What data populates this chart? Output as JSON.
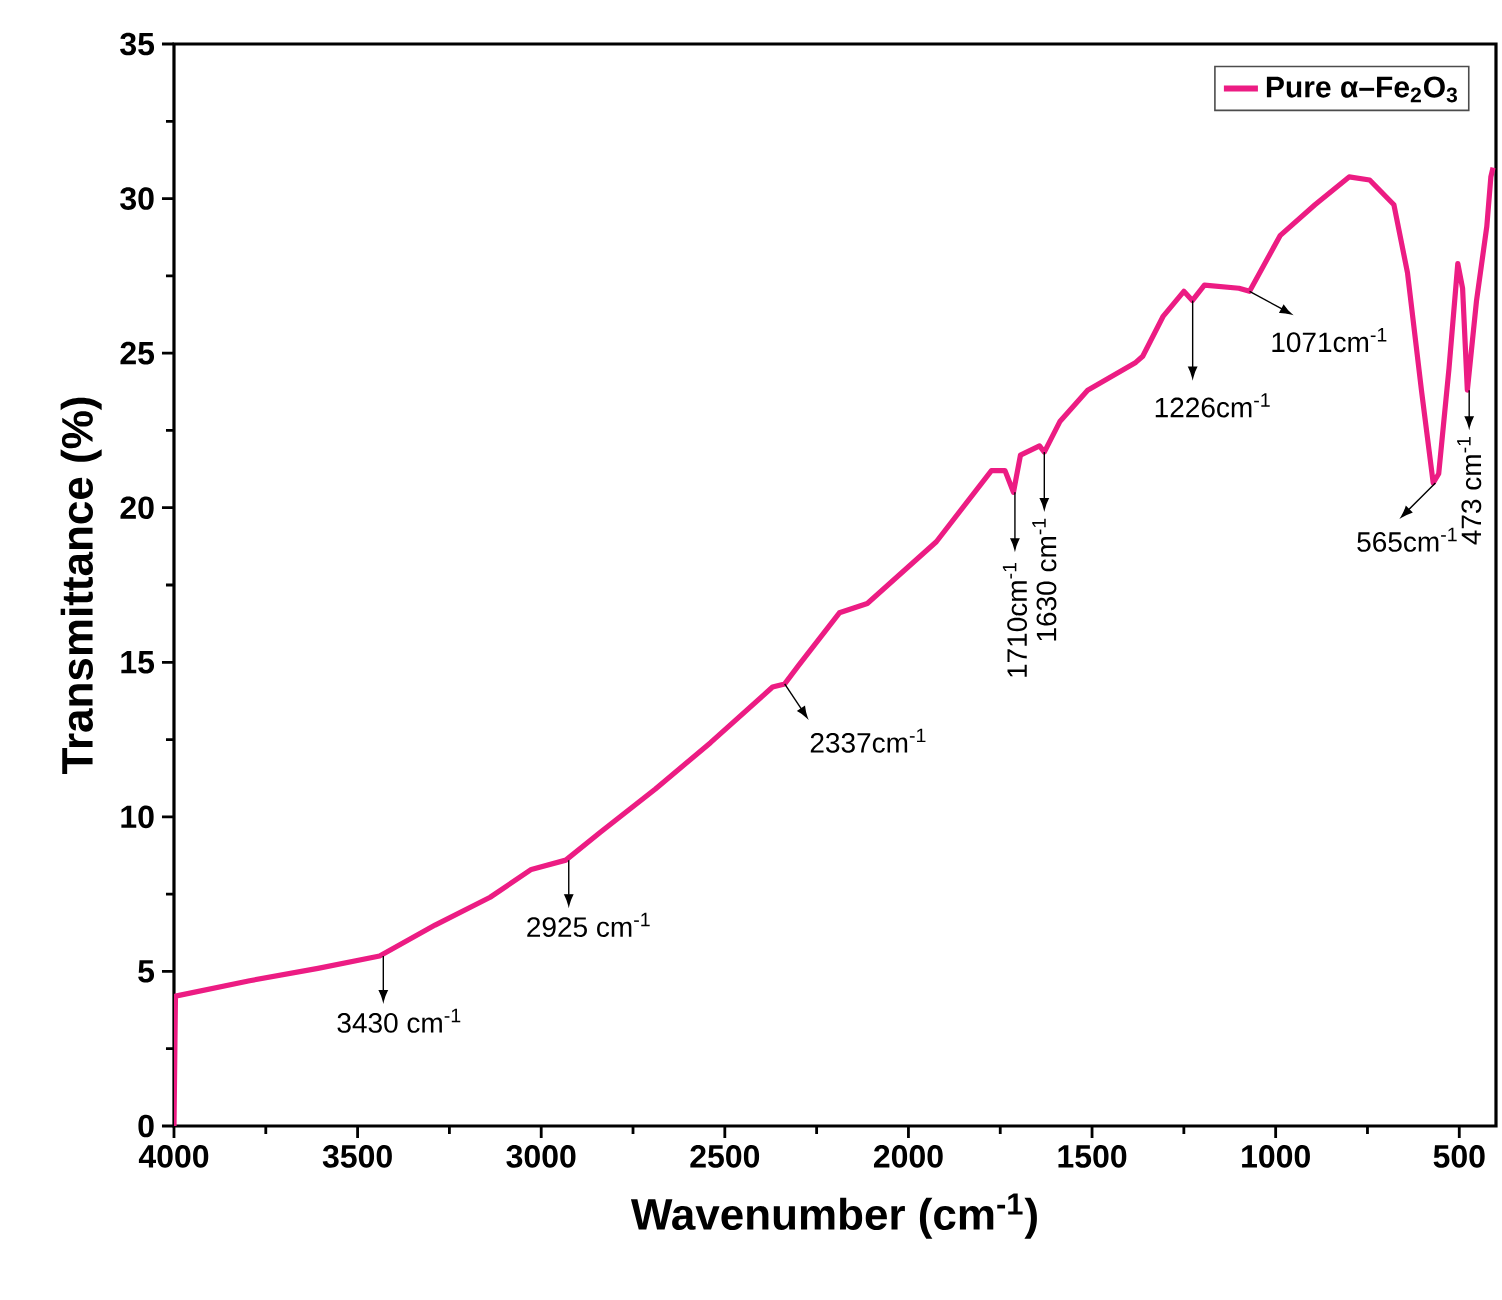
{
  "chart_data": {
    "type": "line",
    "xlabel": "Wavenumber (cm$^{-1}$)",
    "ylabel": "Transmittance (%)",
    "xlim": [
      4000,
      400
    ],
    "ylim": [
      0,
      35
    ],
    "xticks": [
      4000,
      3500,
      3000,
      2500,
      2000,
      1500,
      1000,
      500
    ],
    "yticks": [
      0,
      5,
      10,
      15,
      20,
      25,
      30,
      35
    ],
    "legend": "top right",
    "grid": false,
    "marker": "none",
    "line_style": "solid",
    "series": [
      {
        "name": "Pure α–Fe$_{2}$O$_{3}$",
        "color": "#ec1c83",
        "x": [
          4000,
          3996,
          3794,
          3608,
          3440,
          3289,
          3139,
          3027,
          2933,
          2839,
          2689,
          2539,
          2370,
          2337,
          2299,
          2188,
          2112,
          1924,
          1774,
          1737,
          1714,
          1695,
          1643,
          1630,
          1587,
          1512,
          1381,
          1362,
          1306,
          1250,
          1227,
          1194,
          1100,
          1071,
          988,
          893,
          800,
          744,
          678,
          641,
          603,
          571,
          556,
          528,
          504,
          491,
          478,
          453,
          425,
          414,
          408
        ],
        "values": [
          0,
          4.2,
          4.7,
          5.1,
          5.5,
          6.5,
          7.4,
          8.3,
          8.6,
          9.5,
          10.9,
          12.4,
          14.2,
          14.3,
          14.9,
          16.6,
          16.9,
          18.9,
          21.2,
          21.2,
          20.5,
          21.7,
          22.0,
          21.8,
          22.8,
          23.8,
          24.7,
          24.9,
          26.2,
          27.0,
          26.7,
          27.2,
          27.1,
          27.0,
          28.8,
          29.8,
          30.7,
          30.6,
          29.8,
          27.6,
          23.8,
          20.8,
          21.1,
          24.5,
          27.9,
          27.1,
          23.8,
          26.7,
          29.1,
          30.7,
          31.0
        ]
      }
    ],
    "annotations": [
      {
        "text": "3430 cm$^{-1}$",
        "x": 3430,
        "y": 5.5
      },
      {
        "text": "2925 cm$^{-1}$",
        "x": 2925,
        "y": 8.6
      },
      {
        "text": "2337cm$^{-1}$",
        "x": 2337,
        "y": 14.3
      },
      {
        "text": "1710cm$^{-1}$",
        "x": 1710,
        "y": 20.5
      },
      {
        "text": "1630 cm$^{-1}$",
        "x": 1630,
        "y": 21.8
      },
      {
        "text": "1226cm$^{-1}$",
        "x": 1226,
        "y": 26.7
      },
      {
        "text": "1071cm$^{-1}$",
        "x": 1071,
        "y": 27.0
      },
      {
        "text": "565cm$^{-1}$",
        "x": 565,
        "y": 20.8
      },
      {
        "text": "473 cm$^{-1}$",
        "x": 473,
        "y": 23.8
      }
    ]
  }
}
